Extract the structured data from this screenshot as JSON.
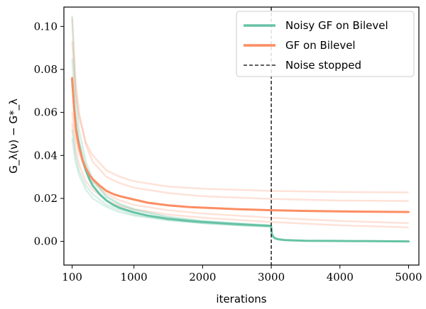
{
  "chart_data": {
    "type": "line",
    "xlabel": "iterations",
    "ylabel": "G_λ(ν) − G*_λ",
    "xlim": [
      -20,
      5150
    ],
    "ylim": [
      -0.011,
      0.109
    ],
    "xticks": [
      100,
      1000,
      2000,
      3000,
      4000,
      5000
    ],
    "xtick_labels": [
      "100",
      "1000",
      "2000",
      "3000",
      "4000",
      "5000"
    ],
    "yticks": [
      0.0,
      0.02,
      0.04,
      0.06,
      0.08,
      0.1
    ],
    "ytick_labels": [
      "0.00",
      "0.02",
      "0.04",
      "0.06",
      "0.08",
      "0.10"
    ],
    "grid": false,
    "legend_position": "top-right",
    "vline": {
      "x": 3000,
      "name": "Noise stopped",
      "color": "#000000",
      "style": "dashed"
    },
    "series": [
      {
        "name": "Noisy GF on Bilevel",
        "color": "#66c2a5",
        "width": 3,
        "x": [
          100,
          130,
          160,
          200,
          250,
          300,
          350,
          400,
          500,
          600,
          700,
          800,
          1000,
          1200,
          1500,
          1800,
          2000,
          2400,
          2800,
          2990,
          3000,
          3010,
          3050,
          3100,
          3200,
          3500,
          4000,
          4500,
          5000
        ],
        "y": [
          0.075,
          0.062,
          0.052,
          0.045,
          0.038,
          0.033,
          0.029,
          0.026,
          0.022,
          0.019,
          0.017,
          0.0155,
          0.0135,
          0.012,
          0.0105,
          0.0095,
          0.009,
          0.0082,
          0.0075,
          0.0072,
          0.0065,
          0.003,
          0.0015,
          0.001,
          0.0006,
          0.0003,
          0.0002,
          0.0001,
          0.0
        ]
      },
      {
        "name": "GF on Bilevel",
        "color": "#fc8d62",
        "width": 3,
        "x": [
          100,
          130,
          160,
          200,
          250,
          300,
          350,
          400,
          500,
          600,
          700,
          800,
          1000,
          1200,
          1500,
          1800,
          2000,
          2500,
          3000,
          3500,
          4000,
          4500,
          5000
        ],
        "y": [
          0.076,
          0.061,
          0.051,
          0.044,
          0.038,
          0.034,
          0.031,
          0.029,
          0.026,
          0.0235,
          0.022,
          0.021,
          0.0195,
          0.018,
          0.0168,
          0.016,
          0.0157,
          0.015,
          0.0145,
          0.0142,
          0.014,
          0.0138,
          0.0137
        ]
      }
    ],
    "background_runs": [
      {
        "color": "#fc8d62",
        "x": [
          100,
          150,
          200,
          300,
          400,
          600,
          800,
          1000,
          1500,
          2000,
          3000,
          4000,
          5000
        ],
        "y": [
          0.093,
          0.07,
          0.058,
          0.046,
          0.04,
          0.033,
          0.03,
          0.028,
          0.0255,
          0.0245,
          0.0235,
          0.023,
          0.0228
        ]
      },
      {
        "color": "#fc8d62",
        "x": [
          100,
          150,
          200,
          300,
          400,
          600,
          800,
          1000,
          1500,
          2000,
          3000,
          4000,
          5000
        ],
        "y": [
          0.104,
          0.075,
          0.06,
          0.045,
          0.037,
          0.03,
          0.027,
          0.025,
          0.0225,
          0.021,
          0.0198,
          0.019,
          0.0188
        ]
      },
      {
        "color": "#fc8d62",
        "x": [
          100,
          150,
          200,
          300,
          400,
          600,
          800,
          1000,
          1500,
          2000,
          3000,
          4000,
          5000
        ],
        "y": [
          0.06,
          0.048,
          0.041,
          0.033,
          0.028,
          0.022,
          0.019,
          0.017,
          0.0145,
          0.013,
          0.011,
          0.0095,
          0.0085
        ]
      },
      {
        "color": "#fc8d62",
        "x": [
          100,
          150,
          200,
          300,
          400,
          600,
          800,
          1000,
          1500,
          2000,
          3000,
          4000,
          5000
        ],
        "y": [
          0.055,
          0.043,
          0.036,
          0.028,
          0.024,
          0.019,
          0.0165,
          0.015,
          0.0125,
          0.011,
          0.009,
          0.0075,
          0.0065
        ]
      },
      {
        "color": "#66c2a5",
        "x": [
          100,
          150,
          200,
          300,
          400,
          600,
          800,
          1000,
          1500,
          2000,
          2500,
          3000
        ],
        "y": [
          0.105,
          0.068,
          0.052,
          0.037,
          0.029,
          0.021,
          0.0175,
          0.015,
          0.0115,
          0.0095,
          0.0085,
          0.0075
        ]
      },
      {
        "color": "#66c2a5",
        "x": [
          100,
          150,
          200,
          300,
          400,
          600,
          800,
          1000,
          1500,
          2000,
          2500,
          3000
        ],
        "y": [
          0.052,
          0.04,
          0.033,
          0.026,
          0.022,
          0.017,
          0.0145,
          0.0125,
          0.01,
          0.0085,
          0.0075,
          0.0068
        ]
      },
      {
        "color": "#66c2a5",
        "x": [
          100,
          150,
          200,
          300,
          400,
          600,
          800,
          1000,
          1500,
          2000,
          2500,
          3000
        ],
        "y": [
          0.048,
          0.037,
          0.031,
          0.024,
          0.02,
          0.016,
          0.0135,
          0.012,
          0.0098,
          0.0085,
          0.0076,
          0.007
        ]
      },
      {
        "color": "#66c2a5",
        "x": [
          100,
          150,
          200,
          300,
          400,
          600,
          800,
          1000,
          1500,
          2000,
          2500,
          3000
        ],
        "y": [
          0.085,
          0.06,
          0.047,
          0.035,
          0.028,
          0.0205,
          0.017,
          0.0145,
          0.0112,
          0.0094,
          0.0083,
          0.0074
        ]
      }
    ]
  }
}
